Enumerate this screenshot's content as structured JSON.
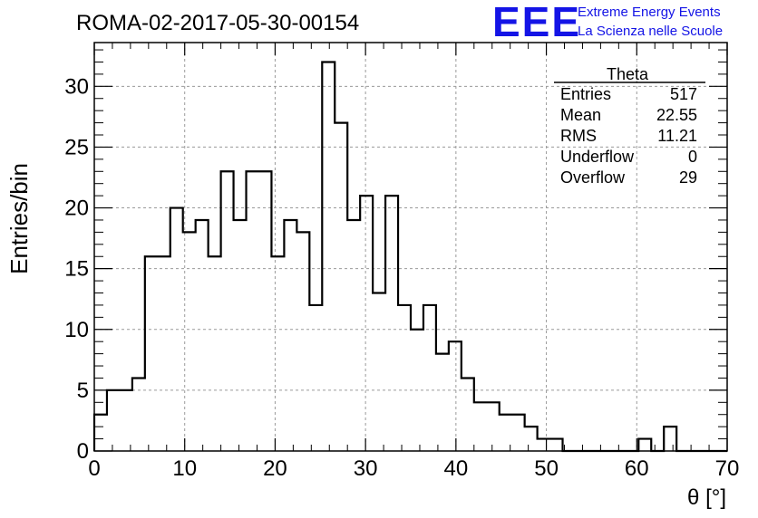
{
  "chart_data": {
    "type": "histogram",
    "title": "ROMA-02-2017-05-30-00154",
    "xlabel": "θ [°]",
    "ylabel": "Entries/bin",
    "xlim": [
      0,
      70
    ],
    "ylim": [
      0,
      33.6
    ],
    "bin_width": 1.4,
    "x_ticks": [
      "0",
      "10",
      "20",
      "30",
      "40",
      "50",
      "60",
      "70"
    ],
    "y_ticks": [
      "0",
      "5",
      "10",
      "15",
      "20",
      "25",
      "30"
    ],
    "grid": true,
    "values": [
      3,
      5,
      5,
      6,
      16,
      16,
      20,
      18,
      19,
      16,
      23,
      19,
      23,
      23,
      16,
      19,
      18,
      12,
      32,
      27,
      19,
      21,
      13,
      21,
      12,
      10,
      12,
      8,
      9,
      6,
      4,
      4,
      3,
      3,
      2,
      1,
      1,
      0,
      0,
      0,
      0,
      0,
      0,
      1,
      0,
      2,
      0,
      0,
      0,
      0
    ],
    "stats": {
      "title": "Theta",
      "rows": [
        {
          "label": "Entries",
          "value": "517"
        },
        {
          "label": "Mean",
          "value": "22.55"
        },
        {
          "label": "RMS",
          "value": "11.21"
        },
        {
          "label": "Underflow",
          "value": "0"
        },
        {
          "label": "Overflow",
          "value": "29"
        }
      ]
    }
  },
  "logo": {
    "mark": "EEE",
    "line1": "Extreme Energy Events",
    "line2": "La Scienza nelle Scuole",
    "color": "#1414e6"
  }
}
